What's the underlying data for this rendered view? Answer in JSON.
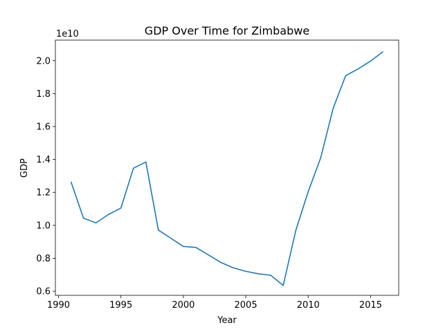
{
  "chart_data": {
    "type": "line",
    "title": "GDP Over Time for Zimbabwe",
    "xlabel": "Year",
    "ylabel": "GDP",
    "y_offset_label": "1e10",
    "y_scale": 10000000000,
    "xlim": [
      1989.75,
      2017.25
    ],
    "ylim": [
      0.575,
      2.125
    ],
    "x_ticks": [
      1990,
      1995,
      2000,
      2005,
      2010,
      2015
    ],
    "y_ticks": [
      0.6,
      0.8,
      1.0,
      1.2,
      1.4,
      1.6,
      1.8,
      2.0
    ],
    "y_tick_labels": [
      "0.6",
      "0.8",
      "1.0",
      "1.2",
      "1.4",
      "1.6",
      "1.8",
      "2.0"
    ],
    "grid": false,
    "line_color": "#1f77b4",
    "series": [
      {
        "x": [
          1991,
          1992,
          1993,
          1994,
          1995,
          1996,
          1997,
          1998,
          1999,
          2000,
          2001,
          2002,
          2003,
          2004,
          2005,
          2006,
          2007,
          2008,
          2009,
          2010,
          2011,
          2012,
          2013,
          2014,
          2015,
          2016
        ],
        "y": [
          1.265,
          1.044,
          1.015,
          1.066,
          1.105,
          1.347,
          1.385,
          0.971,
          0.922,
          0.872,
          0.866,
          0.821,
          0.775,
          0.742,
          0.721,
          0.706,
          0.697,
          0.635,
          0.967,
          1.205,
          1.41,
          1.711,
          1.909,
          1.95,
          1.998,
          2.055
        ]
      }
    ]
  }
}
